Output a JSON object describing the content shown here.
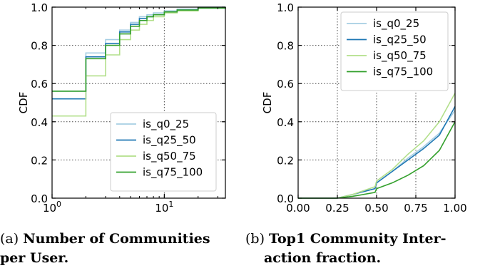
{
  "chart_data": [
    {
      "type": "line",
      "xscale": "log",
      "xlim": [
        1,
        35
      ],
      "ylim": [
        0,
        1
      ],
      "xticks": [
        {
          "value": 1,
          "base": "10",
          "exp": "0"
        },
        {
          "value": 10,
          "base": "10",
          "exp": "1"
        }
      ],
      "yticks": [
        "0.0",
        "0.2",
        "0.4",
        "0.6",
        "0.8",
        "1.0"
      ],
      "ylabel": "CDF",
      "grid": "dotted",
      "legend": "lower-right",
      "series": [
        {
          "name": "is_q0_25",
          "color": "#a6cee3",
          "points": [
            [
              1,
              0.56
            ],
            [
              2,
              0.76
            ],
            [
              3,
              0.83
            ],
            [
              4,
              0.88
            ],
            [
              5,
              0.92
            ],
            [
              6,
              0.95
            ],
            [
              7,
              0.96
            ],
            [
              8,
              0.97
            ],
            [
              10,
              0.98
            ],
            [
              13,
              0.99
            ],
            [
              20,
              1.0
            ],
            [
              35,
              1.0
            ]
          ]
        },
        {
          "name": "is_q25_50",
          "color": "#1f78b4",
          "points": [
            [
              1,
              0.52
            ],
            [
              2,
              0.74
            ],
            [
              3,
              0.81
            ],
            [
              4,
              0.87
            ],
            [
              5,
              0.91
            ],
            [
              6,
              0.94
            ],
            [
              7,
              0.95
            ],
            [
              8,
              0.96
            ],
            [
              10,
              0.975
            ],
            [
              13,
              0.985
            ],
            [
              20,
              0.995
            ],
            [
              35,
              1.0
            ]
          ]
        },
        {
          "name": "is_q50_75",
          "color": "#b2df8a",
          "points": [
            [
              1,
              0.43
            ],
            [
              2,
              0.64
            ],
            [
              3,
              0.75
            ],
            [
              4,
              0.83
            ],
            [
              5,
              0.88
            ],
            [
              6,
              0.91
            ],
            [
              7,
              0.93
            ],
            [
              8,
              0.95
            ],
            [
              10,
              0.97
            ],
            [
              13,
              0.98
            ],
            [
              20,
              0.995
            ],
            [
              35,
              1.0
            ]
          ]
        },
        {
          "name": "is_q75_100",
          "color": "#33a02c",
          "points": [
            [
              1,
              0.56
            ],
            [
              2,
              0.73
            ],
            [
              3,
              0.8
            ],
            [
              4,
              0.86
            ],
            [
              5,
              0.9
            ],
            [
              6,
              0.93
            ],
            [
              7,
              0.95
            ],
            [
              8,
              0.96
            ],
            [
              10,
              0.975
            ],
            [
              13,
              0.985
            ],
            [
              20,
              0.995
            ],
            [
              35,
              1.0
            ]
          ]
        }
      ]
    },
    {
      "type": "line",
      "xlim": [
        0,
        1
      ],
      "ylim": [
        0,
        1
      ],
      "xticks": [
        "0.00",
        "0.25",
        "0.50",
        "0.75",
        "1.00"
      ],
      "yticks": [
        "0.0",
        "0.2",
        "0.4",
        "0.6",
        "0.8",
        "1.0"
      ],
      "ylabel": "CDF",
      "grid": "dotted",
      "legend": "top-right",
      "series": [
        {
          "name": "is_q0_25",
          "color": "#a6cee3",
          "points": [
            [
              0,
              0
            ],
            [
              0.25,
              0
            ],
            [
              0.35,
              0.02
            ],
            [
              0.49,
              0.05
            ],
            [
              0.5,
              0.08
            ],
            [
              0.6,
              0.14
            ],
            [
              0.7,
              0.21
            ],
            [
              0.8,
              0.27
            ],
            [
              0.9,
              0.34
            ],
            [
              1.0,
              0.46
            ]
          ]
        },
        {
          "name": "is_q25_50",
          "color": "#1f78b4",
          "points": [
            [
              0,
              0
            ],
            [
              0.25,
              0
            ],
            [
              0.35,
              0.02
            ],
            [
              0.49,
              0.05
            ],
            [
              0.5,
              0.08
            ],
            [
              0.6,
              0.14
            ],
            [
              0.7,
              0.2
            ],
            [
              0.8,
              0.26
            ],
            [
              0.9,
              0.33
            ],
            [
              1.0,
              0.48
            ]
          ]
        },
        {
          "name": "is_q50_75",
          "color": "#b2df8a",
          "points": [
            [
              0,
              0
            ],
            [
              0.25,
              0
            ],
            [
              0.35,
              0.02
            ],
            [
              0.49,
              0.06
            ],
            [
              0.5,
              0.09
            ],
            [
              0.6,
              0.15
            ],
            [
              0.7,
              0.23
            ],
            [
              0.8,
              0.3
            ],
            [
              0.9,
              0.4
            ],
            [
              1.0,
              0.55
            ]
          ]
        },
        {
          "name": "is_q75_100",
          "color": "#33a02c",
          "points": [
            [
              0,
              0
            ],
            [
              0.25,
              0
            ],
            [
              0.35,
              0.01
            ],
            [
              0.49,
              0.03
            ],
            [
              0.5,
              0.05
            ],
            [
              0.6,
              0.08
            ],
            [
              0.7,
              0.12
            ],
            [
              0.8,
              0.17
            ],
            [
              0.9,
              0.25
            ],
            [
              1.0,
              0.4
            ]
          ]
        }
      ]
    }
  ],
  "captions": [
    {
      "tag": "(a)",
      "title_line1": "Number of Communities",
      "title_line2": "per User."
    },
    {
      "tag": "(b)",
      "title_line1": "Top1 Community Inter-",
      "title_line2": "action fraction."
    }
  ]
}
